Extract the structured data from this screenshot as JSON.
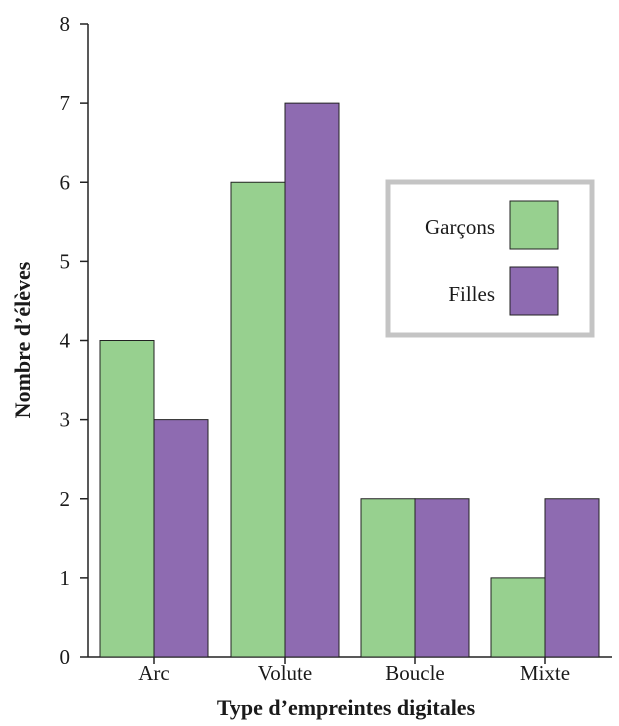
{
  "chart_data": {
    "type": "bar",
    "title": "",
    "xlabel": "Type d’empreintes digitales",
    "ylabel": "Nombre d’élèves",
    "categories": [
      "Arc",
      "Volute",
      "Boucle",
      "Mixte"
    ],
    "series": [
      {
        "name": "Garçons",
        "values": [
          4,
          6,
          2,
          1
        ],
        "color": "#97d08f"
      },
      {
        "name": "Filles",
        "values": [
          3,
          7,
          2,
          2
        ],
        "color": "#8e6bb1"
      }
    ],
    "ylim": [
      0,
      8
    ],
    "yticks": [
      "0",
      "1",
      "2",
      "3",
      "4",
      "5",
      "6",
      "7",
      "8"
    ],
    "grid": false,
    "legend_position": "right"
  }
}
